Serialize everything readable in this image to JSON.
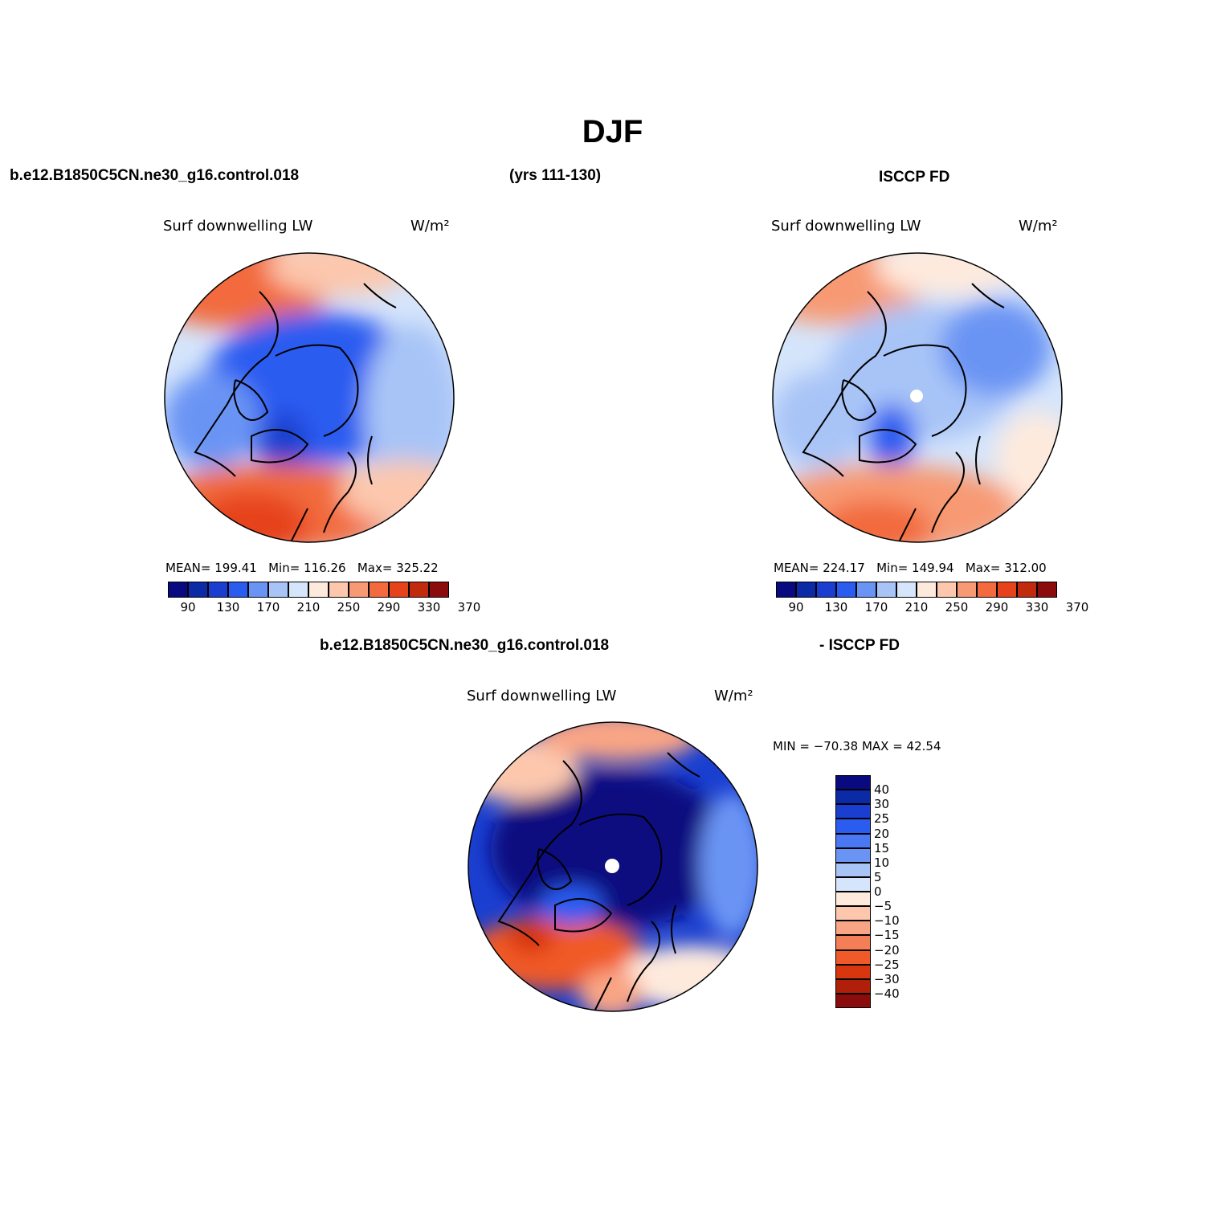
{
  "main_title": "DJF",
  "case_name": "b.e12.B1850C5CN.ne30_g16.control.018",
  "years": "(yrs 111-130)",
  "obs_name": "ISCCP FD",
  "diff_case_name": "b.e12.B1850C5CN.ne30_g16.control.018",
  "diff_obs_name": "- ISCCP FD",
  "panels": {
    "model": {
      "variable": "Surf downwelling LW",
      "units": "W/m²",
      "mean_label": "MEAN=",
      "mean": "199.41",
      "min_label": "Min=",
      "min": "116.26",
      "max_label": "Max=",
      "max": "325.22"
    },
    "obs": {
      "variable": "Surf downwelling LW",
      "units": "W/m²",
      "mean_label": "MEAN=",
      "mean": "224.17",
      "min_label": "Min=",
      "min": "149.94",
      "max_label": "Max=",
      "max": "312.00"
    },
    "diff": {
      "variable": "Surf downwelling LW",
      "units": "W/m²",
      "minmax_text": "MIN = −70.38 MAX =  42.54"
    }
  },
  "abs_colorbar": {
    "colors": [
      "#0a0a80",
      "#0a2aa6",
      "#1a3fd0",
      "#2a5cf0",
      "#6a94f4",
      "#a8c4f7",
      "#d5e5fb",
      "#feeadd",
      "#fcc7ad",
      "#f79a73",
      "#f26a3e",
      "#e6431c",
      "#c22a0e",
      "#8a0c0c"
    ],
    "labels": [
      "90",
      "130",
      "170",
      "210",
      "250",
      "290",
      "330",
      "370"
    ]
  },
  "diff_colorbar": {
    "colors": [
      "#0a0a80",
      "#0a2aa6",
      "#1a3fd0",
      "#2a5cf0",
      "#4a78f2",
      "#6a94f4",
      "#a8c4f7",
      "#d5e5fb",
      "#feeadd",
      "#fcc7ad",
      "#f9a585",
      "#f47f56",
      "#f05a28",
      "#d9360f",
      "#b01f0a",
      "#8a0c0c"
    ],
    "labels": [
      "40",
      "30",
      "25",
      "20",
      "15",
      "10",
      "5",
      "0",
      "−5",
      "−10",
      "−15",
      "−20",
      "−25",
      "−30",
      "−40"
    ]
  }
}
